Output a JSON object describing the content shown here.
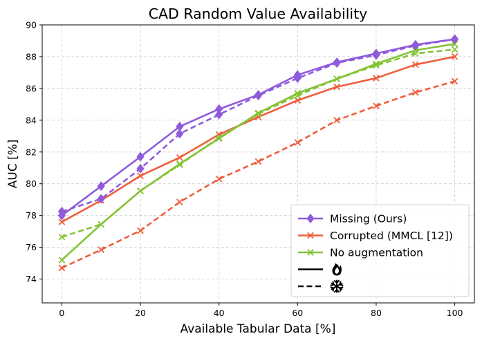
{
  "chart_data": {
    "type": "line",
    "title": "CAD Random Value Availability",
    "xlabel": "Available Tabular Data [%]",
    "ylabel": "AUC [%]",
    "xlim": [
      -5,
      105
    ],
    "ylim": [
      72.5,
      90
    ],
    "xticks": [
      0,
      20,
      40,
      60,
      80,
      100
    ],
    "yticks": [
      74,
      76,
      78,
      80,
      82,
      84,
      86,
      88,
      90
    ],
    "grid": true,
    "legend_position": "lower-right",
    "x": [
      0,
      10,
      20,
      30,
      40,
      50,
      60,
      70,
      80,
      90,
      100
    ],
    "series": [
      {
        "name": "Missing (Ours)",
        "variant": "trainable",
        "color": "#8f5bdc",
        "marker": "diamond",
        "dash": "solid",
        "values": [
          78.0,
          79.85,
          81.7,
          83.6,
          84.7,
          85.6,
          86.85,
          87.65,
          88.2,
          88.75,
          89.1
        ]
      },
      {
        "name": "Missing (Ours)",
        "variant": "frozen",
        "color": "#8f5bdc",
        "marker": "diamond",
        "dash": "dashed",
        "values": [
          78.25,
          79.05,
          80.95,
          83.15,
          84.35,
          85.55,
          86.65,
          87.6,
          88.1,
          88.7,
          89.1
        ]
      },
      {
        "name": "Corrupted (MMCL [12])",
        "variant": "trainable",
        "color": "#ef5d3b",
        "marker": "x",
        "dash": "solid",
        "values": [
          77.6,
          78.95,
          80.5,
          81.65,
          83.1,
          84.2,
          85.25,
          86.1,
          86.65,
          87.5,
          88.0
        ]
      },
      {
        "name": "Corrupted (MMCL [12])",
        "variant": "frozen",
        "color": "#ef5d3b",
        "marker": "x",
        "dash": "dashed",
        "values": [
          74.7,
          75.85,
          77.05,
          78.85,
          80.3,
          81.4,
          82.6,
          84.0,
          84.9,
          85.75,
          86.45
        ]
      },
      {
        "name": "No augmentation",
        "variant": "trainable",
        "color": "#84c335",
        "marker": "x",
        "dash": "solid",
        "values": [
          75.2,
          77.45,
          79.55,
          81.25,
          82.85,
          84.45,
          85.7,
          86.6,
          87.55,
          88.4,
          88.8
        ]
      },
      {
        "name": "No augmentation",
        "variant": "frozen",
        "color": "#84c335",
        "marker": "x",
        "dash": "dashed",
        "values": [
          76.65,
          77.45,
          79.55,
          81.2,
          82.9,
          84.4,
          85.55,
          86.6,
          87.45,
          88.2,
          88.45
        ]
      }
    ],
    "legend": [
      {
        "label": "Missing (Ours)",
        "color": "#8f5bdc",
        "marker": "diamond",
        "dash": "solid"
      },
      {
        "label": "Corrupted (MMCL [12])",
        "color": "#ef5d3b",
        "marker": "x",
        "dash": "solid"
      },
      {
        "label": "No augmentation",
        "color": "#84c335",
        "marker": "x",
        "dash": "solid"
      },
      {
        "label": "",
        "icon": "flame-icon",
        "color": "#000000",
        "dash": "solid"
      },
      {
        "label": "",
        "icon": "snowflake-icon",
        "color": "#000000",
        "dash": "dashed"
      }
    ]
  }
}
